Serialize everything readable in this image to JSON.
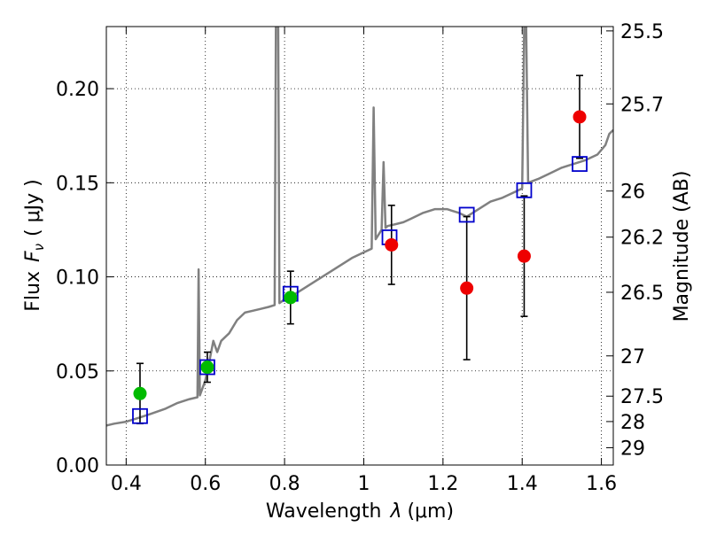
{
  "chart_data": {
    "type": "scatter",
    "xlabel_text": "Wavelength",
    "xlabel_symbol": "λ",
    "xlabel_unit": "(μm)",
    "ylabel_text": "Flux",
    "ylabel_symbol": "F",
    "ylabel_subscript": "ν",
    "ylabel_unit": "( μJy )",
    "y2label": "Magnitude (AB)",
    "xlim": [
      0.35,
      1.63
    ],
    "ylim": [
      0.0,
      0.233
    ],
    "grid": true,
    "x_ticks": [
      0.4,
      0.6,
      0.8,
      1.0,
      1.2,
      1.4,
      1.6
    ],
    "x_tick_labels": [
      "0.4",
      "0.6",
      "0.8",
      "1",
      "1.2",
      "1.4",
      "1.6"
    ],
    "y_ticks": [
      0.0,
      0.05,
      0.1,
      0.15,
      0.2
    ],
    "y_tick_labels": [
      "0.00",
      "0.05",
      "0.10",
      "0.15",
      "0.20"
    ],
    "y2_ticks": [
      {
        "label": "25.5",
        "flux": 0.2307
      },
      {
        "label": "25.7",
        "flux": 0.1919
      },
      {
        "label": "26",
        "flux": 0.1456
      },
      {
        "label": "26.2",
        "flux": 0.1211
      },
      {
        "label": "26.5",
        "flux": 0.0918
      },
      {
        "label": "27",
        "flux": 0.058
      },
      {
        "label": "27.5",
        "flux": 0.0366
      },
      {
        "label": "28",
        "flux": 0.0231
      },
      {
        "label": "29",
        "flux": 0.0092
      }
    ],
    "colors": {
      "template": "#808080",
      "model_squares": "#0000cc",
      "detections_green": "#00bb00",
      "detections_red": "#ee0000",
      "errorbar": "#000000"
    },
    "template_spectrum": [
      [
        0.35,
        0.021
      ],
      [
        0.37,
        0.022
      ],
      [
        0.4,
        0.023
      ],
      [
        0.43,
        0.025
      ],
      [
        0.46,
        0.027
      ],
      [
        0.5,
        0.03
      ],
      [
        0.53,
        0.033
      ],
      [
        0.56,
        0.035
      ],
      [
        0.58,
        0.036
      ],
      [
        0.583,
        0.104
      ],
      [
        0.586,
        0.037
      ],
      [
        0.6,
        0.045
      ],
      [
        0.61,
        0.055
      ],
      [
        0.62,
        0.066
      ],
      [
        0.63,
        0.06
      ],
      [
        0.64,
        0.066
      ],
      [
        0.66,
        0.07
      ],
      [
        0.68,
        0.077
      ],
      [
        0.7,
        0.081
      ],
      [
        0.72,
        0.082
      ],
      [
        0.74,
        0.083
      ],
      [
        0.76,
        0.084
      ],
      [
        0.775,
        0.085
      ],
      [
        0.778,
        0.233
      ],
      [
        0.784,
        0.233
      ],
      [
        0.787,
        0.086
      ],
      [
        0.8,
        0.088
      ],
      [
        0.82,
        0.09
      ],
      [
        0.85,
        0.094
      ],
      [
        0.88,
        0.098
      ],
      [
        0.91,
        0.102
      ],
      [
        0.94,
        0.106
      ],
      [
        0.97,
        0.11
      ],
      [
        1.0,
        0.113
      ],
      [
        1.02,
        0.115
      ],
      [
        1.025,
        0.19
      ],
      [
        1.03,
        0.12
      ],
      [
        1.045,
        0.125
      ],
      [
        1.05,
        0.161
      ],
      [
        1.055,
        0.126
      ],
      [
        1.06,
        0.127
      ],
      [
        1.08,
        0.128
      ],
      [
        1.1,
        0.129
      ],
      [
        1.12,
        0.131
      ],
      [
        1.15,
        0.134
      ],
      [
        1.18,
        0.136
      ],
      [
        1.21,
        0.136
      ],
      [
        1.24,
        0.134
      ],
      [
        1.26,
        0.132
      ],
      [
        1.29,
        0.136
      ],
      [
        1.32,
        0.14
      ],
      [
        1.35,
        0.142
      ],
      [
        1.38,
        0.145
      ],
      [
        1.4,
        0.147
      ],
      [
        1.405,
        0.233
      ],
      [
        1.41,
        0.233
      ],
      [
        1.415,
        0.15
      ],
      [
        1.44,
        0.152
      ],
      [
        1.47,
        0.155
      ],
      [
        1.5,
        0.158
      ],
      [
        1.53,
        0.16
      ],
      [
        1.56,
        0.162
      ],
      [
        1.59,
        0.165
      ],
      [
        1.61,
        0.17
      ],
      [
        1.62,
        0.176
      ],
      [
        1.63,
        0.178
      ]
    ],
    "model_squares": [
      {
        "x": 0.435,
        "y": 0.026
      },
      {
        "x": 0.605,
        "y": 0.052
      },
      {
        "x": 0.815,
        "y": 0.091
      },
      {
        "x": 1.065,
        "y": 0.121
      },
      {
        "x": 1.26,
        "y": 0.133
      },
      {
        "x": 1.405,
        "y": 0.146
      },
      {
        "x": 1.545,
        "y": 0.16
      }
    ],
    "detections": [
      {
        "x": 0.435,
        "y": 0.038,
        "yerr": 0.016,
        "color": "green"
      },
      {
        "x": 0.605,
        "y": 0.052,
        "yerr": 0.008,
        "color": "green"
      },
      {
        "x": 0.815,
        "y": 0.089,
        "yerr": 0.014,
        "color": "green"
      },
      {
        "x": 1.07,
        "y": 0.117,
        "yerr": 0.021,
        "color": "red"
      },
      {
        "x": 1.26,
        "y": 0.094,
        "yerr": 0.038,
        "color": "red"
      },
      {
        "x": 1.405,
        "y": 0.111,
        "yerr": 0.032,
        "color": "red"
      },
      {
        "x": 1.545,
        "y": 0.185,
        "yerr": 0.022,
        "color": "red"
      }
    ]
  }
}
